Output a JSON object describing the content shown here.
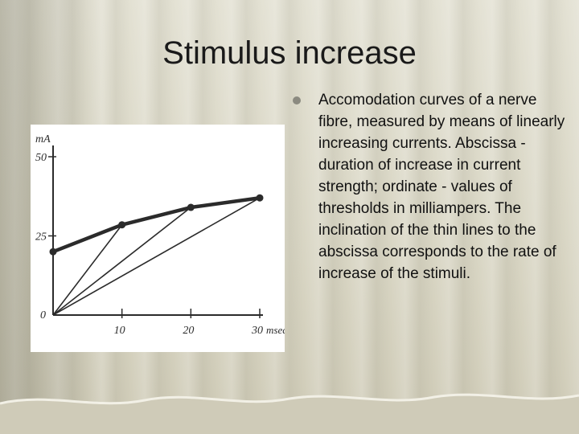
{
  "slide": {
    "title": "Stimulus increase",
    "bullet": "Accomodation curves of a nerve fibre, measured by means of linearly increasing currents. Abscissa - duration of increase in current strength; ordinate - values of thresholds in milliampers. The inclination of the thin lines to the abscissa corresponds to the rate of increase of the stimuli."
  },
  "chart_data": {
    "type": "line",
    "ylabel": "mA",
    "xunit": "msec",
    "xlim": [
      0,
      30
    ],
    "ylim": [
      0,
      50
    ],
    "x_ticks": [
      "0",
      "10",
      "20",
      "30"
    ],
    "y_ticks": [
      "0",
      "25",
      "50"
    ],
    "series": [
      {
        "style": "thick",
        "x": [
          0,
          10,
          20,
          30
        ],
        "y": [
          20,
          28.5,
          34,
          37
        ]
      },
      {
        "style": "thin",
        "x": [
          0,
          10
        ],
        "y": [
          0,
          28.5
        ]
      },
      {
        "style": "thin",
        "x": [
          0,
          20
        ],
        "y": [
          0,
          34
        ]
      },
      {
        "style": "thin",
        "x": [
          0,
          30
        ],
        "y": [
          0,
          37
        ]
      }
    ]
  }
}
